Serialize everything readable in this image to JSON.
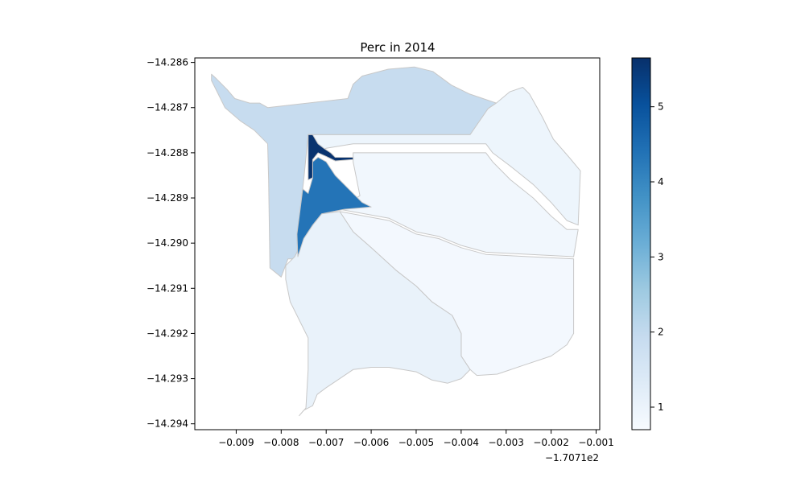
{
  "chart_data": {
    "type": "choropleth",
    "title": "Perc in 2014",
    "xlabel": "",
    "ylabel": "",
    "x_offset_label": "−1.7071e2",
    "xlim": [
      -0.00992,
      -0.00092
    ],
    "ylim": [
      -14.29413,
      -14.2859
    ],
    "x_ticks": [
      -0.009,
      -0.008,
      -0.007,
      -0.006,
      -0.005,
      -0.004,
      -0.003,
      -0.002,
      -0.001
    ],
    "x_tick_labels": [
      "−0.009",
      "−0.008",
      "−0.007",
      "−0.006",
      "−0.005",
      "−0.004",
      "−0.003",
      "−0.002",
      "−0.001"
    ],
    "y_ticks": [
      -14.286,
      -14.287,
      -14.288,
      -14.289,
      -14.29,
      -14.291,
      -14.292,
      -14.293,
      -14.294
    ],
    "y_tick_labels": [
      "−14.286",
      "−14.287",
      "−14.288",
      "−14.289",
      "−14.290",
      "−14.291",
      "−14.292",
      "−14.293",
      "−14.294"
    ],
    "grid": false,
    "colormap": "Blues",
    "colorbar": {
      "vmin": 0.7,
      "vmax": 5.65,
      "ticks": [
        1,
        2,
        3,
        4,
        5
      ],
      "tick_labels": [
        "1",
        "2",
        "3",
        "4",
        "5"
      ]
    },
    "regions": [
      {
        "value": 1.9,
        "polygon": [
          [
            -0.00955,
            -14.28626
          ],
          [
            -0.00944,
            -14.28636
          ],
          [
            -0.0092,
            -14.2866
          ],
          [
            -0.00903,
            -14.2868
          ],
          [
            -0.0087,
            -14.2869
          ],
          [
            -0.00848,
            -14.2869
          ],
          [
            -0.0083,
            -14.287
          ],
          [
            -0.00652,
            -14.2868
          ],
          [
            -0.0064,
            -14.28648
          ],
          [
            -0.0062,
            -14.2863
          ],
          [
            -0.00562,
            -14.28615
          ],
          [
            -0.00504,
            -14.2861
          ],
          [
            -0.00463,
            -14.2862
          ],
          [
            -0.00422,
            -14.2865
          ],
          [
            -0.00381,
            -14.2867
          ],
          [
            -0.00322,
            -14.2869
          ],
          [
            -0.0034,
            -14.28702
          ],
          [
            -0.0038,
            -14.2876
          ],
          [
            -0.0074,
            -14.2876
          ],
          [
            -0.0075,
            -14.2886
          ],
          [
            -0.00765,
            -14.28985
          ],
          [
            -0.00763,
            -14.29035
          ],
          [
            -0.00785,
            -14.29035
          ],
          [
            -0.008,
            -14.29075
          ],
          [
            -0.00825,
            -14.29055
          ],
          [
            -0.00828,
            -14.2886
          ],
          [
            -0.0083,
            -14.2878
          ],
          [
            -0.0086,
            -14.2875
          ],
          [
            -0.0089,
            -14.2873
          ],
          [
            -0.00925,
            -14.287
          ],
          [
            -0.0094,
            -14.2867
          ],
          [
            -0.00955,
            -14.2864
          ]
        ]
      },
      {
        "value": 0.95,
        "polygon": [
          [
            -0.0074,
            -14.2876
          ],
          [
            -0.0038,
            -14.2876
          ],
          [
            -0.0034,
            -14.28702
          ],
          [
            -0.00322,
            -14.2869
          ],
          [
            -0.00292,
            -14.28665
          ],
          [
            -0.00263,
            -14.28655
          ],
          [
            -0.00248,
            -14.2867
          ],
          [
            -0.0022,
            -14.2872
          ],
          [
            -0.00195,
            -14.2877
          ],
          [
            -0.0016,
            -14.2881
          ],
          [
            -0.00135,
            -14.2884
          ],
          [
            -0.0014,
            -14.2896
          ],
          [
            -0.00165,
            -14.2895
          ],
          [
            -0.002,
            -14.2891
          ],
          [
            -0.0024,
            -14.2887
          ],
          [
            -0.0029,
            -14.2883
          ],
          [
            -0.0033,
            -14.288
          ],
          [
            -0.00345,
            -14.2878
          ],
          [
            -0.0064,
            -14.2878
          ],
          [
            -0.007,
            -14.2879
          ],
          [
            -0.00725,
            -14.288
          ],
          [
            -0.0074,
            -14.2878
          ]
        ]
      },
      {
        "value": 0.85,
        "polygon": [
          [
            -0.0064,
            -14.288
          ],
          [
            -0.00345,
            -14.288
          ],
          [
            -0.0033,
            -14.2882
          ],
          [
            -0.0029,
            -14.2886
          ],
          [
            -0.0024,
            -14.289
          ],
          [
            -0.002,
            -14.2894
          ],
          [
            -0.00165,
            -14.2897
          ],
          [
            -0.0014,
            -14.2897
          ],
          [
            -0.0015,
            -14.2903
          ],
          [
            -0.00345,
            -14.2902
          ],
          [
            -0.004,
            -14.29005
          ],
          [
            -0.0045,
            -14.28985
          ],
          [
            -0.005,
            -14.28975
          ],
          [
            -0.0056,
            -14.28945
          ],
          [
            -0.0067,
            -14.28925
          ],
          [
            -0.00625,
            -14.28895
          ],
          [
            -0.0064,
            -14.2882
          ]
        ]
      },
      {
        "value": 0.8,
        "polygon": [
          [
            -0.0067,
            -14.2893
          ],
          [
            -0.0056,
            -14.2895
          ],
          [
            -0.005,
            -14.2898
          ],
          [
            -0.0045,
            -14.2899
          ],
          [
            -0.004,
            -14.2901
          ],
          [
            -0.00345,
            -14.29025
          ],
          [
            -0.0015,
            -14.29035
          ],
          [
            -0.0015,
            -14.292
          ],
          [
            -0.00165,
            -14.29225
          ],
          [
            -0.002,
            -14.2925
          ],
          [
            -0.0026,
            -14.2927
          ],
          [
            -0.0032,
            -14.2929
          ],
          [
            -0.00365,
            -14.29293
          ],
          [
            -0.0038,
            -14.2928
          ],
          [
            -0.004,
            -14.2925
          ],
          [
            -0.004,
            -14.292
          ],
          [
            -0.0042,
            -14.2916
          ],
          [
            -0.00465,
            -14.2913
          ],
          [
            -0.005,
            -14.29095
          ],
          [
            -0.00545,
            -14.2906
          ],
          [
            -0.006,
            -14.2901
          ],
          [
            -0.0064,
            -14.28975
          ]
        ]
      },
      {
        "value": 1.05,
        "polygon": [
          [
            -0.0071,
            -14.28935
          ],
          [
            -0.0067,
            -14.2893
          ],
          [
            -0.0064,
            -14.28975
          ],
          [
            -0.006,
            -14.2901
          ],
          [
            -0.00545,
            -14.2906
          ],
          [
            -0.005,
            -14.29095
          ],
          [
            -0.00465,
            -14.2913
          ],
          [
            -0.0042,
            -14.2916
          ],
          [
            -0.004,
            -14.292
          ],
          [
            -0.004,
            -14.2925
          ],
          [
            -0.0038,
            -14.2928
          ],
          [
            -0.004,
            -14.293
          ],
          [
            -0.0043,
            -14.2931
          ],
          [
            -0.00465,
            -14.29303
          ],
          [
            -0.005,
            -14.29285
          ],
          [
            -0.0056,
            -14.29275
          ],
          [
            -0.006,
            -14.29275
          ],
          [
            -0.0064,
            -14.2928
          ],
          [
            -0.0067,
            -14.293
          ],
          [
            -0.007,
            -14.2932
          ],
          [
            -0.0072,
            -14.29335
          ],
          [
            -0.0073,
            -14.2936
          ],
          [
            -0.0075,
            -14.2937
          ],
          [
            -0.0076,
            -14.29382
          ],
          [
            -0.00745,
            -14.29365
          ],
          [
            -0.0074,
            -14.2928
          ],
          [
            -0.0074,
            -14.2921
          ],
          [
            -0.0076,
            -14.2917
          ],
          [
            -0.0078,
            -14.2913
          ],
          [
            -0.0079,
            -14.2908
          ],
          [
            -0.0079,
            -14.2905
          ],
          [
            -0.0077,
            -14.2903
          ],
          [
            -0.0075,
            -14.2899
          ],
          [
            -0.0073,
            -14.2896
          ]
        ]
      },
      {
        "value": 4.35,
        "polygon": [
          [
            -0.0074,
            -14.2889
          ],
          [
            -0.0073,
            -14.28855
          ],
          [
            -0.0073,
            -14.2882
          ],
          [
            -0.00718,
            -14.2881
          ],
          [
            -0.007,
            -14.2882
          ],
          [
            -0.0068,
            -14.2885
          ],
          [
            -0.0065,
            -14.2888
          ],
          [
            -0.0062,
            -14.2891
          ],
          [
            -0.006,
            -14.2892
          ],
          [
            -0.0066,
            -14.28925
          ],
          [
            -0.0071,
            -14.28935
          ],
          [
            -0.0073,
            -14.2896
          ],
          [
            -0.0075,
            -14.2899
          ],
          [
            -0.00763,
            -14.2903
          ],
          [
            -0.00765,
            -14.2898
          ],
          [
            -0.00752,
            -14.2888
          ]
        ]
      },
      {
        "value": 5.6,
        "polygon": [
          [
            -0.0074,
            -14.2876
          ],
          [
            -0.0073,
            -14.2876
          ],
          [
            -0.00718,
            -14.2878
          ],
          [
            -0.00705,
            -14.2879
          ],
          [
            -0.0069,
            -14.288
          ],
          [
            -0.0068,
            -14.2881
          ],
          [
            -0.0064,
            -14.2881
          ],
          [
            -0.0064,
            -14.28815
          ],
          [
            -0.0068,
            -14.28818
          ],
          [
            -0.007,
            -14.28808
          ],
          [
            -0.00718,
            -14.288
          ],
          [
            -0.0073,
            -14.28815
          ],
          [
            -0.0073,
            -14.28855
          ],
          [
            -0.0074,
            -14.2886
          ]
        ]
      }
    ]
  }
}
